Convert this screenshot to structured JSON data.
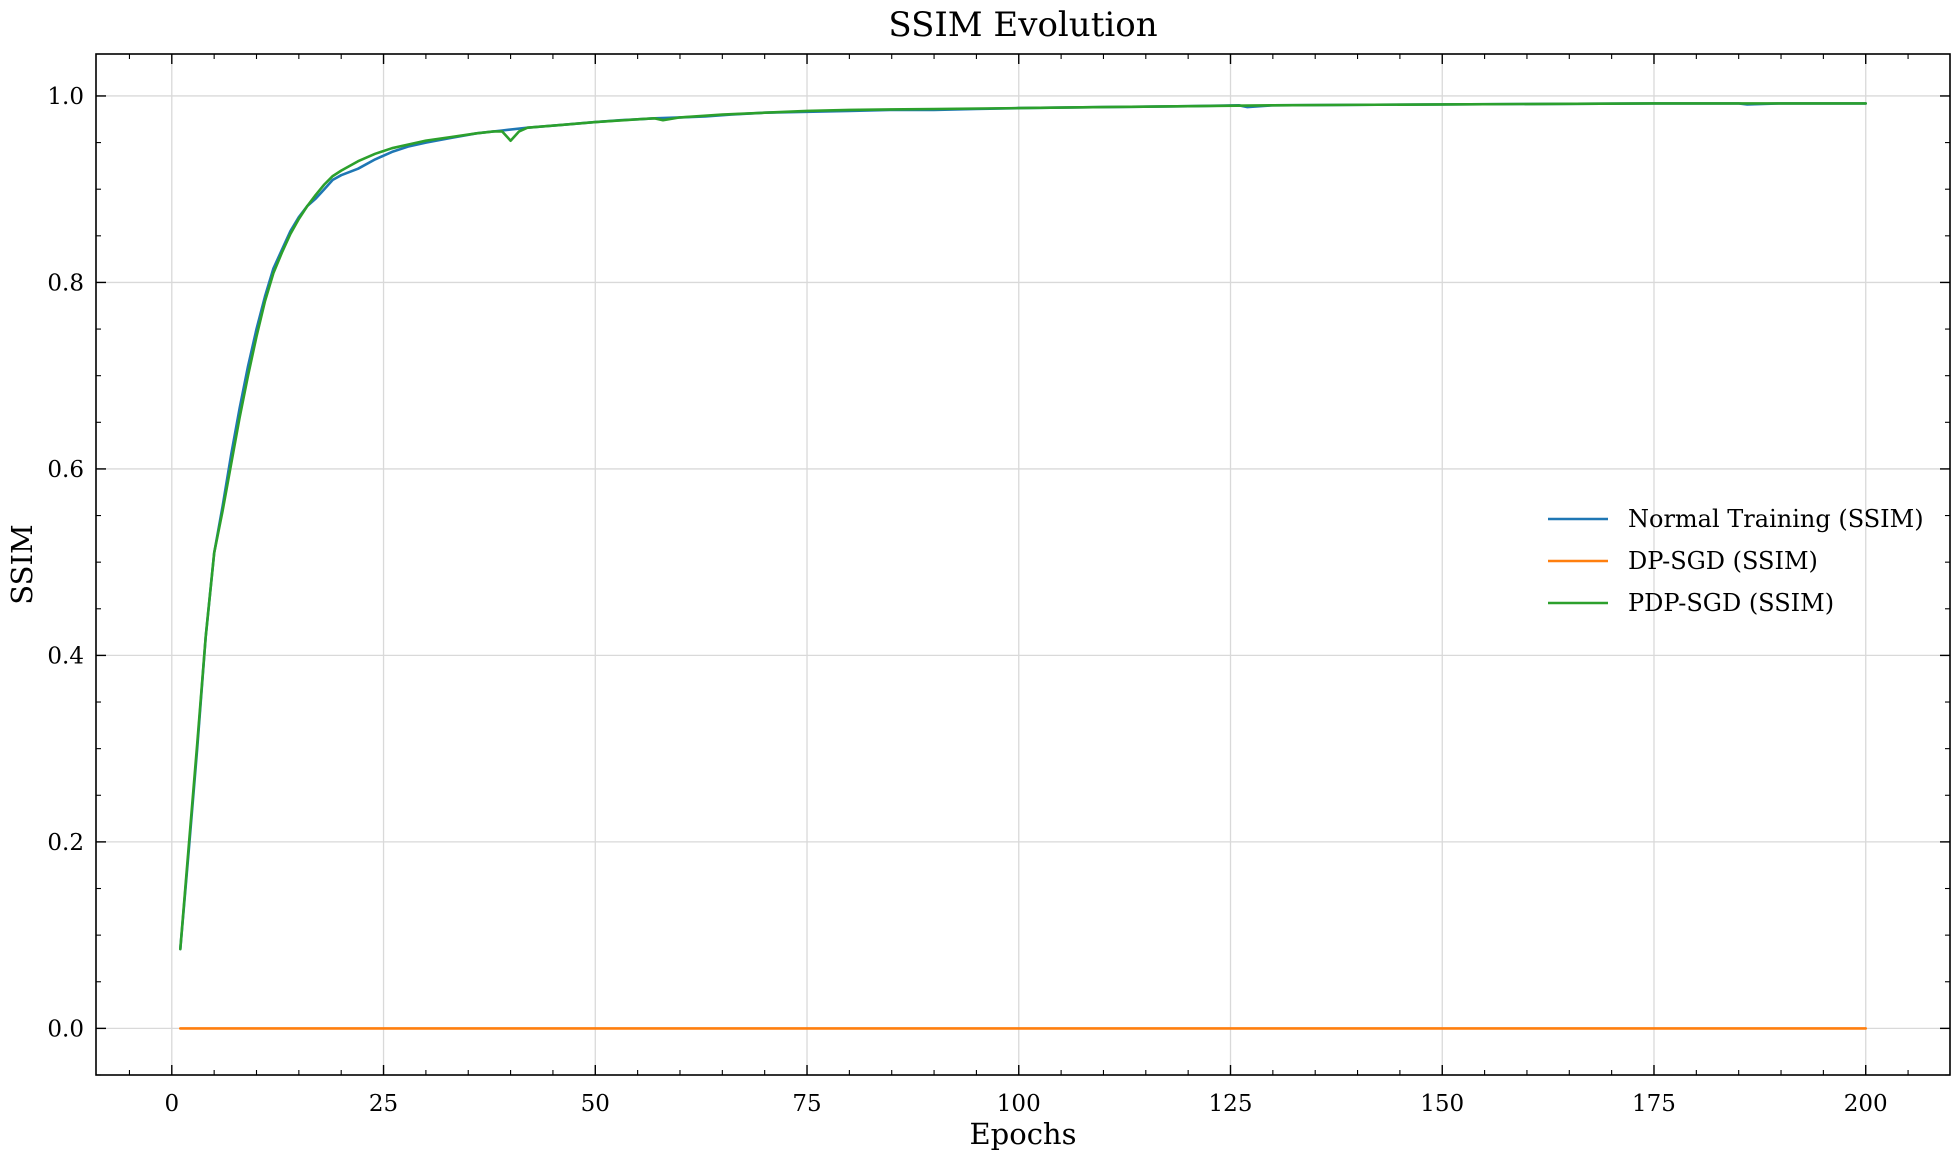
{
  "chart_data": {
    "type": "line",
    "title": "SSIM Evolution",
    "xlabel": "Epochs",
    "ylabel": "SSIM",
    "xlim": [
      -8.95,
      209.95
    ],
    "ylim": [
      -0.05,
      1.045
    ],
    "xticks": [
      0,
      25,
      50,
      75,
      100,
      125,
      150,
      175,
      200
    ],
    "xtick_labels": [
      "0",
      "25",
      "50",
      "75",
      "100",
      "125",
      "150",
      "175",
      "200"
    ],
    "yticks": [
      0.0,
      0.2,
      0.4,
      0.6,
      0.8,
      1.0
    ],
    "ytick_labels": [
      "0.0",
      "0.2",
      "0.4",
      "0.6",
      "0.8",
      "1.0"
    ],
    "grid": true,
    "legend_position": "center-right",
    "series": [
      {
        "name": "Normal Training (SSIM)",
        "color": "#1f77b4",
        "x": [
          1,
          2,
          3,
          4,
          5,
          6,
          7,
          8,
          9,
          10,
          11,
          12,
          13,
          14,
          15,
          16,
          17,
          18,
          19,
          20,
          22,
          24,
          26,
          28,
          30,
          33,
          36,
          39,
          42,
          46,
          50,
          53,
          55,
          57,
          60,
          63,
          66,
          70,
          75,
          80,
          85,
          90,
          95,
          100,
          110,
          120,
          126,
          127,
          130,
          150,
          175,
          185,
          186,
          190,
          200
        ],
        "y": [
          0.085,
          0.19,
          0.3,
          0.42,
          0.51,
          0.56,
          0.615,
          0.665,
          0.71,
          0.75,
          0.785,
          0.815,
          0.835,
          0.855,
          0.87,
          0.882,
          0.89,
          0.9,
          0.91,
          0.915,
          0.922,
          0.932,
          0.94,
          0.946,
          0.95,
          0.955,
          0.96,
          0.963,
          0.966,
          0.969,
          0.972,
          0.974,
          0.975,
          0.976,
          0.977,
          0.978,
          0.98,
          0.982,
          0.983,
          0.984,
          0.985,
          0.985,
          0.986,
          0.987,
          0.988,
          0.989,
          0.99,
          0.988,
          0.99,
          0.991,
          0.992,
          0.992,
          0.991,
          0.992,
          0.992
        ]
      },
      {
        "name": "DP-SGD (SSIM)",
        "color": "#ff7f0e",
        "x": [
          1,
          200
        ],
        "y": [
          0.0,
          0.0
        ]
      },
      {
        "name": "PDP-SGD (SSIM)",
        "color": "#2ca02c",
        "x": [
          1,
          2,
          3,
          4,
          5,
          6,
          7,
          8,
          9,
          10,
          11,
          12,
          13,
          14,
          15,
          16,
          17,
          18,
          19,
          20,
          22,
          24,
          26,
          28,
          30,
          33,
          36,
          38,
          39,
          40,
          41,
          42,
          46,
          50,
          55,
          57,
          58,
          60,
          65,
          70,
          75,
          80,
          90,
          100,
          110,
          120,
          130,
          150,
          175,
          200
        ],
        "y": [
          0.085,
          0.195,
          0.305,
          0.42,
          0.51,
          0.555,
          0.605,
          0.655,
          0.7,
          0.742,
          0.78,
          0.81,
          0.832,
          0.852,
          0.868,
          0.882,
          0.894,
          0.905,
          0.914,
          0.92,
          0.93,
          0.938,
          0.944,
          0.948,
          0.952,
          0.956,
          0.96,
          0.962,
          0.962,
          0.952,
          0.962,
          0.966,
          0.969,
          0.972,
          0.975,
          0.976,
          0.974,
          0.977,
          0.98,
          0.982,
          0.984,
          0.985,
          0.986,
          0.987,
          0.988,
          0.989,
          0.99,
          0.991,
          0.992,
          0.992
        ]
      }
    ]
  }
}
